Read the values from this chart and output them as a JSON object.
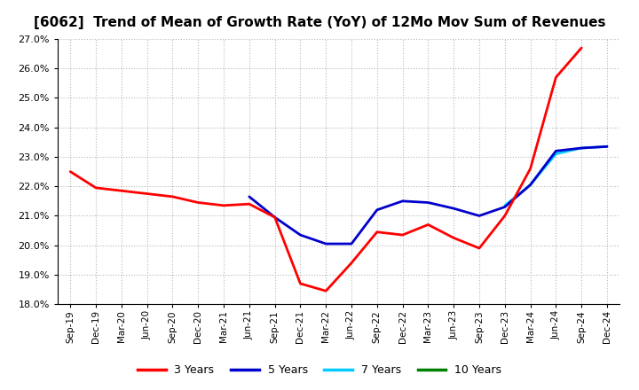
{
  "title": "[6062]  Trend of Mean of Growth Rate (YoY) of 12Mo Mov Sum of Revenues",
  "title_fontsize": 11,
  "background_color": "#ffffff",
  "grid_color": "#b0b0b0",
  "ylim": [
    0.18,
    0.27
  ],
  "yticks": [
    0.18,
    0.19,
    0.2,
    0.21,
    0.22,
    0.23,
    0.24,
    0.25,
    0.26,
    0.27
  ],
  "x_labels": [
    "Sep-19",
    "Dec-19",
    "Mar-20",
    "Jun-20",
    "Sep-20",
    "Dec-20",
    "Mar-21",
    "Jun-21",
    "Sep-21",
    "Dec-21",
    "Mar-22",
    "Jun-22",
    "Sep-22",
    "Dec-22",
    "Mar-23",
    "Jun-23",
    "Sep-23",
    "Dec-23",
    "Mar-24",
    "Jun-24",
    "Sep-24",
    "Dec-24"
  ],
  "series_3y_color": "#ff0000",
  "series_5y_color": "#0000cc",
  "series_7y_color": "#00ccff",
  "series_10y_color": "#008000",
  "legend_labels": [
    "3 Years",
    "5 Years",
    "7 Years",
    "10 Years"
  ],
  "series_3y": [
    0.225,
    0.2195,
    0.2185,
    0.2175,
    0.2165,
    0.2145,
    0.2135,
    0.214,
    0.2095,
    0.187,
    0.1845,
    0.194,
    0.2045,
    0.2035,
    0.207,
    0.2025,
    0.199,
    0.21,
    0.226,
    0.257,
    0.267,
    null
  ],
  "series_5y": [
    null,
    null,
    null,
    null,
    null,
    null,
    null,
    0.2165,
    0.2095,
    0.2035,
    0.2005,
    0.2005,
    0.212,
    0.215,
    0.2145,
    0.2125,
    0.21,
    0.213,
    0.2205,
    0.232,
    0.233,
    0.2335
  ],
  "series_7y": [
    null,
    null,
    null,
    null,
    null,
    null,
    null,
    null,
    null,
    null,
    null,
    null,
    null,
    null,
    null,
    null,
    null,
    0.2135,
    0.2205,
    0.231,
    0.233,
    0.2335
  ],
  "series_10y": [
    null,
    null,
    null,
    null,
    null,
    null,
    null,
    null,
    null,
    null,
    null,
    null,
    null,
    null,
    null,
    null,
    null,
    null,
    null,
    null,
    null,
    null
  ]
}
